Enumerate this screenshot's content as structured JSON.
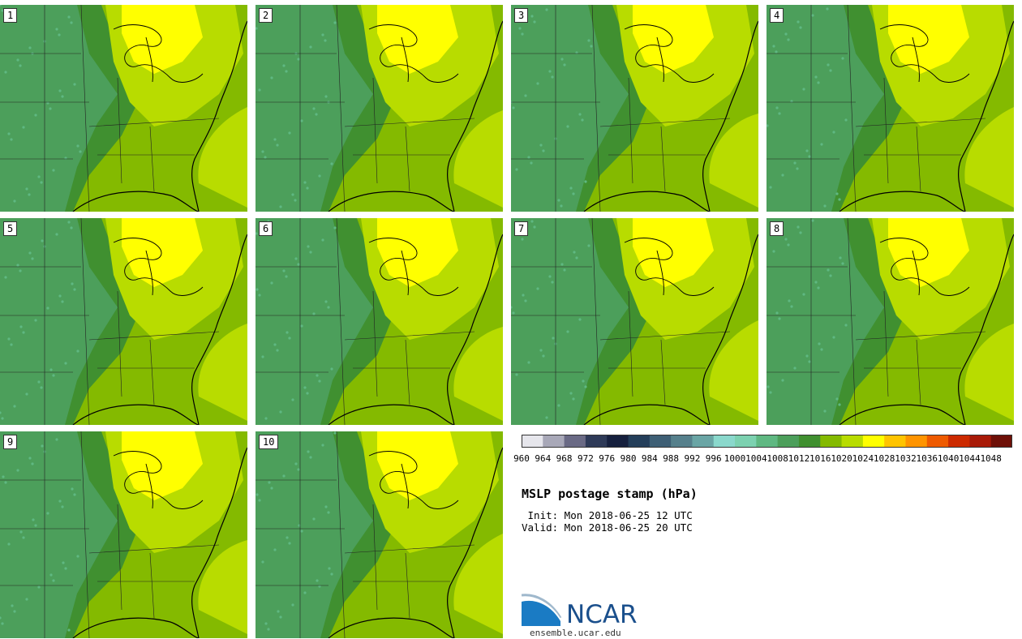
{
  "panels": [
    {
      "label": "1"
    },
    {
      "label": "2"
    },
    {
      "label": "3"
    },
    {
      "label": "4"
    },
    {
      "label": "5"
    },
    {
      "label": "6"
    },
    {
      "label": "7"
    },
    {
      "label": "8"
    },
    {
      "label": "9"
    },
    {
      "label": "10"
    }
  ],
  "colorbar": {
    "ticks": [
      "960",
      "964",
      "968",
      "972",
      "976",
      "980",
      "984",
      "988",
      "992",
      "996",
      "1000",
      "1004",
      "1008",
      "1012",
      "1016",
      "1020",
      "1024",
      "1028",
      "1032",
      "1036",
      "1040",
      "1044",
      "1048"
    ],
    "colors": [
      "#e6e6ec",
      "#a8a8b8",
      "#6a6a85",
      "#2e3a58",
      "#16203e",
      "#243e5a",
      "#3e5f75",
      "#56808c",
      "#6aa5a5",
      "#8ad8cc",
      "#7cd1b0",
      "#5fb882",
      "#4c9f5b",
      "#409030",
      "#84ba00",
      "#b8dc00",
      "#ffff00",
      "#ffc400",
      "#ff9400",
      "#ee5a00",
      "#cc2a00",
      "#a81a08",
      "#6e1008"
    ]
  },
  "title": "MSLP postage stamp (hPa)",
  "init": " Init: Mon 2018-06-25 12 UTC",
  "valid": "Valid: Mon 2018-06-25 20 UTC",
  "logo": {
    "text": "NCAR",
    "url": "ensemble.ucar.edu"
  },
  "colors": {
    "low": "#4c9f5b",
    "mid": "#409030",
    "mid2": "#84ba00",
    "high": "#b8dc00",
    "max": "#ffff00"
  }
}
